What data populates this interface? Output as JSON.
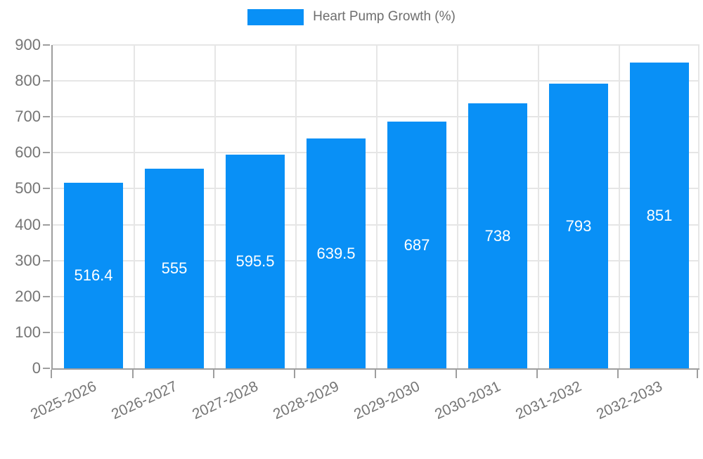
{
  "legend": {
    "label": "Heart Pump Growth (%)"
  },
  "chart_data": {
    "type": "bar",
    "title": "Heart Pump Growth (%)",
    "xlabel": "",
    "ylabel": "",
    "categories": [
      "2025-2026",
      "2026-2027",
      "2027-2028",
      "2028-2029",
      "2029-2030",
      "2030-2031",
      "2031-2032",
      "2032-2033"
    ],
    "values": [
      516.4,
      555,
      595.5,
      639.5,
      687,
      738,
      793,
      851
    ],
    "value_labels": [
      "516.4",
      "555",
      "595.5",
      "639.5",
      "687",
      "738",
      "793",
      "851"
    ],
    "series": [
      {
        "name": "Heart Pump Growth (%)",
        "values": [
          516.4,
          555,
          595.5,
          639.5,
          687,
          738,
          793,
          851
        ]
      }
    ],
    "ylim": [
      0,
      900
    ],
    "yticks": [
      0,
      100,
      200,
      300,
      400,
      500,
      600,
      700,
      800,
      900
    ],
    "grid": true,
    "legend_position": "top",
    "x_label_rotation_deg": -25,
    "colors": {
      "bar": "#0990f6",
      "grid": "#e6e6e6",
      "axis": "#9e9e9e",
      "tick_label": "#757575",
      "value_label": "#ffffff",
      "legend_text": "#6e6e6e",
      "background": "#ffffff"
    }
  }
}
